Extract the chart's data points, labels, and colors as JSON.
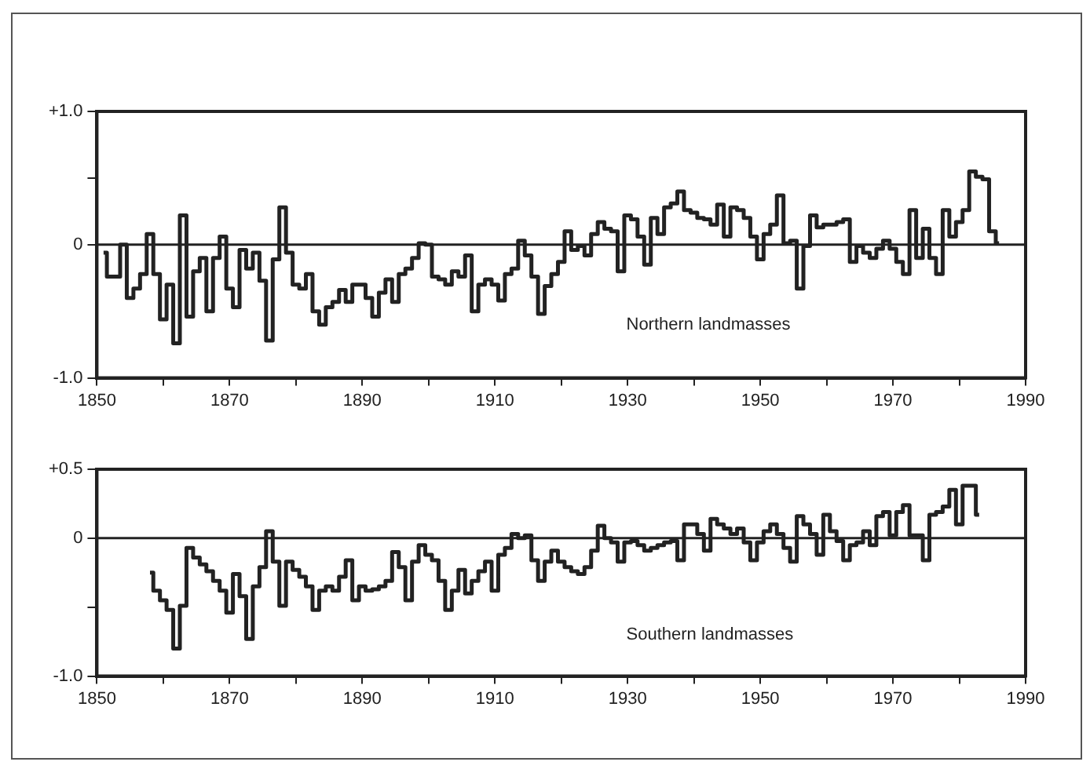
{
  "chart_data": [
    {
      "type": "step",
      "x": [
        1851,
        1852,
        1853,
        1854,
        1855,
        1856,
        1857,
        1858,
        1859,
        1860,
        1861,
        1862,
        1863,
        1864,
        1865,
        1866,
        1867,
        1868,
        1869,
        1870,
        1871,
        1872,
        1873,
        1874,
        1875,
        1876,
        1877,
        1878,
        1879,
        1880,
        1881,
        1882,
        1883,
        1884,
        1885,
        1886,
        1887,
        1888,
        1889,
        1890,
        1891,
        1892,
        1893,
        1894,
        1895,
        1896,
        1897,
        1898,
        1899,
        1900,
        1901,
        1902,
        1903,
        1904,
        1905,
        1906,
        1907,
        1908,
        1909,
        1910,
        1911,
        1912,
        1913,
        1914,
        1915,
        1916,
        1917,
        1918,
        1919,
        1920,
        1921,
        1922,
        1923,
        1924,
        1925,
        1926,
        1927,
        1928,
        1929,
        1930,
        1931,
        1932,
        1933,
        1934,
        1935,
        1936,
        1937,
        1938,
        1939,
        1940,
        1941,
        1942,
        1943,
        1944,
        1945,
        1946,
        1947,
        1948,
        1949,
        1950,
        1951,
        1952,
        1953,
        1954,
        1955,
        1956,
        1957,
        1958,
        1959,
        1960,
        1961,
        1962,
        1963,
        1964,
        1965,
        1966,
        1967,
        1968,
        1969,
        1970,
        1971,
        1972,
        1973,
        1974,
        1975,
        1976,
        1977,
        1978,
        1979,
        1980,
        1981,
        1982,
        1983,
        1984,
        1985,
        1986
      ],
      "series": [
        {
          "color": "#222222",
          "values": [
            -0.06,
            -0.24,
            -0.24,
            0.0,
            -0.4,
            -0.33,
            -0.22,
            0.08,
            -0.22,
            -0.56,
            -0.3,
            -0.74,
            0.22,
            -0.54,
            -0.2,
            -0.1,
            -0.5,
            -0.1,
            0.06,
            -0.33,
            -0.47,
            -0.04,
            -0.18,
            -0.06,
            -0.27,
            -0.72,
            -0.11,
            0.28,
            -0.06,
            -0.3,
            -0.33,
            -0.22,
            -0.5,
            -0.6,
            -0.47,
            -0.43,
            -0.34,
            -0.43,
            -0.3,
            -0.3,
            -0.4,
            -0.54,
            -0.36,
            -0.26,
            -0.43,
            -0.22,
            -0.18,
            -0.1,
            0.01,
            0.0,
            -0.24,
            -0.26,
            -0.3,
            -0.2,
            -0.24,
            -0.08,
            -0.5,
            -0.3,
            -0.26,
            -0.3,
            -0.42,
            -0.22,
            -0.18,
            0.03,
            -0.08,
            -0.24,
            -0.52,
            -0.31,
            -0.22,
            -0.13,
            0.1,
            -0.04,
            -0.01,
            -0.08,
            0.08,
            0.17,
            0.12,
            0.1,
            -0.2,
            0.22,
            0.19,
            0.06,
            -0.15,
            0.2,
            0.08,
            0.28,
            0.31,
            0.4,
            0.26,
            0.24,
            0.2,
            0.19,
            0.15,
            0.3,
            0.06,
            0.28,
            0.26,
            0.2,
            0.06,
            -0.11,
            0.08,
            0.15,
            0.37,
            0.01,
            0.03,
            -0.33,
            -0.01,
            0.22,
            0.13,
            0.15,
            0.15,
            0.17,
            0.19,
            -0.13,
            -0.01,
            -0.06,
            -0.1,
            -0.03,
            0.03,
            -0.03,
            -0.13,
            -0.22,
            0.26,
            -0.1,
            0.12,
            -0.1,
            -0.22,
            0.26,
            0.06,
            0.17,
            0.26,
            0.55,
            0.51,
            0.49,
            0.1,
            0.01
          ]
        }
      ],
      "xlim": [
        1850,
        1990
      ],
      "xticks": [
        1850,
        {
          "value": 1860,
          "label": null
        },
        1870,
        {
          "value": 1880,
          "label": null
        },
        1890,
        {
          "value": 1900,
          "label": null
        },
        1910,
        {
          "value": 1920,
          "label": null
        },
        1930,
        {
          "value": 1940,
          "label": null
        },
        1950,
        {
          "value": 1960,
          "label": null
        },
        1970,
        {
          "value": 1980,
          "label": null
        },
        1990
      ],
      "ylim": [
        -1,
        1
      ],
      "yticks": [
        {
          "value": -1,
          "label": "-1.0"
        },
        0,
        {
          "value": 0.5,
          "label": null
        },
        {
          "value": 1,
          "label": "+1.0"
        }
      ],
      "ref_lines": [
        {
          "axis": "y",
          "value": 0
        }
      ],
      "annotations": [
        "Northern landmasses"
      ],
      "grid": false,
      "legend": false
    },
    {
      "type": "step",
      "x": [
        1858,
        1859,
        1860,
        1861,
        1862,
        1863,
        1864,
        1865,
        1866,
        1867,
        1868,
        1869,
        1870,
        1871,
        1872,
        1873,
        1874,
        1875,
        1876,
        1877,
        1878,
        1879,
        1880,
        1881,
        1882,
        1883,
        1884,
        1885,
        1886,
        1887,
        1888,
        1889,
        1890,
        1891,
        1892,
        1893,
        1894,
        1895,
        1896,
        1897,
        1898,
        1899,
        1900,
        1901,
        1902,
        1903,
        1904,
        1905,
        1906,
        1907,
        1908,
        1909,
        1910,
        1911,
        1912,
        1913,
        1914,
        1915,
        1916,
        1917,
        1918,
        1919,
        1920,
        1921,
        1922,
        1923,
        1924,
        1925,
        1926,
        1927,
        1928,
        1929,
        1930,
        1931,
        1932,
        1933,
        1934,
        1935,
        1936,
        1937,
        1938,
        1939,
        1940,
        1941,
        1942,
        1943,
        1944,
        1945,
        1946,
        1947,
        1948,
        1949,
        1950,
        1951,
        1952,
        1953,
        1954,
        1955,
        1956,
        1957,
        1958,
        1959,
        1960,
        1961,
        1962,
        1963,
        1964,
        1965,
        1966,
        1967,
        1968,
        1969,
        1970,
        1971,
        1972,
        1973,
        1974,
        1975,
        1976,
        1977,
        1978,
        1979,
        1980,
        1981,
        1982,
        1983
      ],
      "series": [
        {
          "color": "#222222",
          "values": [
            -0.25,
            -0.38,
            -0.45,
            -0.52,
            -0.8,
            -0.49,
            -0.07,
            -0.14,
            -0.19,
            -0.24,
            -0.31,
            -0.38,
            -0.54,
            -0.26,
            -0.42,
            -0.73,
            -0.35,
            -0.21,
            0.05,
            -0.17,
            -0.49,
            -0.17,
            -0.23,
            -0.28,
            -0.35,
            -0.52,
            -0.38,
            -0.35,
            -0.38,
            -0.28,
            -0.16,
            -0.45,
            -0.35,
            -0.38,
            -0.37,
            -0.35,
            -0.31,
            -0.1,
            -0.21,
            -0.45,
            -0.17,
            -0.05,
            -0.12,
            -0.16,
            -0.31,
            -0.52,
            -0.38,
            -0.23,
            -0.4,
            -0.31,
            -0.24,
            -0.17,
            -0.38,
            -0.12,
            -0.07,
            0.03,
            0.0,
            0.02,
            -0.16,
            -0.31,
            -0.17,
            -0.09,
            -0.17,
            -0.21,
            -0.24,
            -0.26,
            -0.21,
            -0.09,
            0.09,
            0.0,
            -0.03,
            -0.17,
            -0.03,
            -0.02,
            -0.05,
            -0.09,
            -0.07,
            -0.05,
            -0.03,
            -0.02,
            -0.16,
            0.1,
            0.1,
            0.03,
            -0.09,
            0.14,
            0.1,
            0.07,
            0.03,
            0.07,
            -0.03,
            -0.16,
            -0.03,
            0.05,
            0.1,
            0.03,
            -0.07,
            -0.17,
            0.16,
            0.1,
            0.03,
            -0.12,
            0.17,
            0.05,
            -0.02,
            -0.16,
            -0.05,
            -0.03,
            0.05,
            -0.05,
            0.16,
            0.19,
            0.02,
            0.19,
            0.24,
            0.02,
            0.02,
            -0.16,
            0.17,
            0.19,
            0.23,
            0.35,
            0.1,
            0.38,
            0.38,
            0.17
          ]
        }
      ],
      "xlim": [
        1850,
        1990
      ],
      "xticks": [
        1850,
        {
          "value": 1860,
          "label": null
        },
        1870,
        {
          "value": 1880,
          "label": null
        },
        1890,
        {
          "value": 1900,
          "label": null
        },
        1910,
        {
          "value": 1920,
          "label": null
        },
        1930,
        {
          "value": 1940,
          "label": null
        },
        1950,
        {
          "value": 1960,
          "label": null
        },
        1970,
        {
          "value": 1980,
          "label": null
        },
        1990
      ],
      "ylim": [
        -1,
        0.5
      ],
      "yticks": [
        {
          "value": -1,
          "label": "-1.0"
        },
        {
          "value": -0.5,
          "label": null
        },
        0,
        {
          "value": 0.5,
          "label": "+0.5"
        }
      ],
      "ref_lines": [
        {
          "axis": "y",
          "value": 0
        }
      ],
      "annotations": [
        "Southern landmasses"
      ],
      "grid": false,
      "legend": false
    }
  ]
}
